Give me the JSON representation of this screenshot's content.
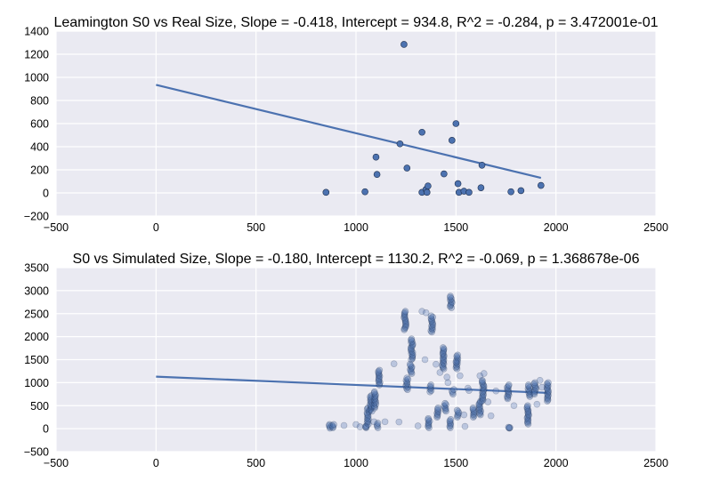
{
  "chart_data": [
    {
      "type": "scatter",
      "title": "Leamington S0 vs Real Size, Slope = -0.418, Intercept = 934.8, R^2 = -0.284, p = 3.472001e-01",
      "xlabel": "",
      "ylabel": "",
      "xlim": [
        -500,
        2500
      ],
      "ylim": [
        -200,
        1400
      ],
      "x_ticks": [
        -500,
        0,
        500,
        1000,
        1500,
        2000,
        2500
      ],
      "y_ticks": [
        -200,
        0,
        200,
        400,
        600,
        800,
        1000,
        1200,
        1400
      ],
      "grid": true,
      "background": "#eaeaf2",
      "point_color": "#4c72b0",
      "point_alpha": 1.0,
      "fit_line": {
        "slope": -0.418,
        "intercept": 934.8,
        "x_range": [
          0,
          1925
        ],
        "color": "#4c72b0"
      },
      "points": [
        [
          850,
          5
        ],
        [
          1045,
          10
        ],
        [
          1100,
          310
        ],
        [
          1105,
          160
        ],
        [
          1220,
          425
        ],
        [
          1240,
          1285
        ],
        [
          1255,
          215
        ],
        [
          1330,
          525
        ],
        [
          1330,
          5
        ],
        [
          1350,
          30
        ],
        [
          1355,
          5
        ],
        [
          1360,
          60
        ],
        [
          1440,
          165
        ],
        [
          1480,
          455
        ],
        [
          1500,
          600
        ],
        [
          1510,
          80
        ],
        [
          1515,
          5
        ],
        [
          1540,
          15
        ],
        [
          1565,
          5
        ],
        [
          1625,
          45
        ],
        [
          1630,
          240
        ],
        [
          1775,
          10
        ],
        [
          1825,
          20
        ],
        [
          1925,
          65
        ]
      ]
    },
    {
      "type": "scatter",
      "title": "S0 vs Simulated Size, Slope = -0.180, Intercept = 1130.2, R^2 = -0.069, p = 1.368678e-06",
      "xlabel": "",
      "ylabel": "",
      "xlim": [
        -500,
        2500
      ],
      "ylim": [
        -500,
        3500
      ],
      "x_ticks": [
        -500,
        0,
        500,
        1000,
        1500,
        2000,
        2500
      ],
      "y_ticks": [
        -500,
        0,
        500,
        1000,
        1500,
        2000,
        2500,
        3000,
        3500
      ],
      "grid": true,
      "background": "#eaeaf2",
      "point_color": "#4c72b0",
      "point_alpha": 0.35,
      "fit_line": {
        "slope": -0.18,
        "intercept": 1130.2,
        "x_range": [
          0,
          1960
        ],
        "color": "#4c72b0"
      },
      "clusters": [
        {
          "x": 870,
          "y_min": 10,
          "y_max": 90
        },
        {
          "x": 885,
          "y_min": 20,
          "y_max": 90
        },
        {
          "x": 1050,
          "y_min": 20,
          "y_max": 60
        },
        {
          "x": 1060,
          "y_min": 100,
          "y_max": 450
        },
        {
          "x": 1075,
          "y_min": 380,
          "y_max": 720
        },
        {
          "x": 1095,
          "y_min": 450,
          "y_max": 800
        },
        {
          "x": 1110,
          "y_min": 20,
          "y_max": 120
        },
        {
          "x": 1115,
          "y_min": 950,
          "y_max": 1270
        },
        {
          "x": 1245,
          "y_min": 2150,
          "y_max": 2550
        },
        {
          "x": 1255,
          "y_min": 850,
          "y_max": 1100
        },
        {
          "x": 1275,
          "y_min": 1200,
          "y_max": 1400
        },
        {
          "x": 1280,
          "y_min": 1500,
          "y_max": 1950
        },
        {
          "x": 1365,
          "y_min": 20,
          "y_max": 220
        },
        {
          "x": 1375,
          "y_min": 800,
          "y_max": 950
        },
        {
          "x": 1380,
          "y_min": 2100,
          "y_max": 2450
        },
        {
          "x": 1410,
          "y_min": 250,
          "y_max": 450
        },
        {
          "x": 1435,
          "y_min": 1300,
          "y_max": 1760
        },
        {
          "x": 1445,
          "y_min": 380,
          "y_max": 550
        },
        {
          "x": 1470,
          "y_min": 20,
          "y_max": 200
        },
        {
          "x": 1475,
          "y_min": 2630,
          "y_max": 2880
        },
        {
          "x": 1485,
          "y_min": 750,
          "y_max": 850
        },
        {
          "x": 1505,
          "y_min": 1300,
          "y_max": 1600
        },
        {
          "x": 1510,
          "y_min": 250,
          "y_max": 400
        },
        {
          "x": 1590,
          "y_min": 250,
          "y_max": 450
        },
        {
          "x": 1620,
          "y_min": 300,
          "y_max": 600
        },
        {
          "x": 1635,
          "y_min": 600,
          "y_max": 1050
        },
        {
          "x": 1765,
          "y_min": 10,
          "y_max": 30
        },
        {
          "x": 1760,
          "y_min": 650,
          "y_max": 950
        },
        {
          "x": 1860,
          "y_min": 100,
          "y_max": 500
        },
        {
          "x": 1865,
          "y_min": 700,
          "y_max": 950
        },
        {
          "x": 1895,
          "y_min": 750,
          "y_max": 1000
        },
        {
          "x": 1960,
          "y_min": 600,
          "y_max": 1000
        }
      ],
      "scatter_extras": [
        [
          940,
          70
        ],
        [
          1000,
          90
        ],
        [
          1020,
          40
        ],
        [
          1090,
          150
        ],
        [
          1145,
          150
        ],
        [
          1190,
          1410
        ],
        [
          1215,
          145
        ],
        [
          1310,
          60
        ],
        [
          1330,
          2550
        ],
        [
          1345,
          1500
        ],
        [
          1350,
          2520
        ],
        [
          1400,
          1400
        ],
        [
          1420,
          1220
        ],
        [
          1455,
          1120
        ],
        [
          1460,
          1000
        ],
        [
          1500,
          1450
        ],
        [
          1520,
          1150
        ],
        [
          1540,
          300
        ],
        [
          1545,
          50
        ],
        [
          1560,
          880
        ],
        [
          1565,
          830
        ],
        [
          1620,
          1150
        ],
        [
          1640,
          1200
        ],
        [
          1660,
          580
        ],
        [
          1675,
          280
        ],
        [
          1700,
          820
        ],
        [
          1790,
          500
        ],
        [
          1920,
          1050
        ],
        [
          1905,
          530
        ],
        [
          1930,
          900
        ]
      ]
    }
  ]
}
